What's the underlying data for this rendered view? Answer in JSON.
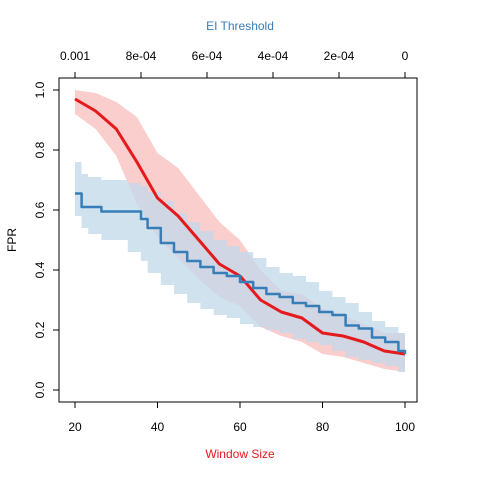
{
  "colors": {
    "red_line": "#e41a1c",
    "red_band": "#f9b3b3",
    "blue_line": "#377eb8",
    "blue_band": "#c2d8ea",
    "axis": "#000000"
  },
  "chart_data": {
    "type": "line",
    "title": "",
    "xlabel": "Window Size",
    "ylabel": "FPR",
    "top_xlabel": "EI Threshold",
    "xlim": [
      20,
      100
    ],
    "ylim": [
      0,
      1
    ],
    "xticks": [
      "20",
      "40",
      "60",
      "80",
      "100"
    ],
    "yticks": [
      "0.0",
      "0.2",
      "0.4",
      "0.6",
      "0.8",
      "1.0"
    ],
    "top_ticks": [
      "0.001",
      "8e-04",
      "6e-04",
      "4e-04",
      "2e-04",
      "0"
    ],
    "grid": false,
    "legend": "none",
    "series": [
      {
        "axis": "bottom",
        "color_key": "red",
        "x": [
          20,
          25,
          30,
          35,
          40,
          45,
          50,
          55,
          60,
          65,
          70,
          75,
          80,
          85,
          90,
          95,
          100
        ],
        "values": [
          0.97,
          0.93,
          0.87,
          0.76,
          0.64,
          0.58,
          0.5,
          0.42,
          0.38,
          0.3,
          0.26,
          0.24,
          0.19,
          0.18,
          0.16,
          0.13,
          0.12
        ],
        "lower": [
          0.92,
          0.87,
          0.78,
          0.62,
          0.51,
          0.44,
          0.37,
          0.31,
          0.28,
          0.21,
          0.18,
          0.16,
          0.12,
          0.11,
          0.09,
          0.07,
          0.06
        ],
        "upper": [
          1.0,
          0.99,
          0.96,
          0.91,
          0.79,
          0.74,
          0.65,
          0.56,
          0.5,
          0.4,
          0.33,
          0.32,
          0.27,
          0.25,
          0.22,
          0.19,
          0.19
        ]
      },
      {
        "axis": "top",
        "color_key": "blue",
        "x": [
          0.001,
          0.00098,
          0.00096,
          0.00092,
          0.00084,
          0.0008,
          0.00078,
          0.00074,
          0.0007,
          0.00066,
          0.00062,
          0.00058,
          0.00054,
          0.0005,
          0.00046,
          0.00042,
          0.00038,
          0.00034,
          0.0003,
          0.00026,
          0.00022,
          0.00018,
          0.00014,
          0.0001,
          6e-05,
          2e-05,
          0.0
        ],
        "values": [
          0.655,
          0.61,
          0.61,
          0.595,
          0.595,
          0.57,
          0.54,
          0.49,
          0.46,
          0.43,
          0.41,
          0.39,
          0.38,
          0.36,
          0.34,
          0.32,
          0.31,
          0.29,
          0.28,
          0.26,
          0.25,
          0.215,
          0.205,
          0.175,
          0.16,
          0.13,
          0.12
        ],
        "lower": [
          0.58,
          0.54,
          0.52,
          0.5,
          0.46,
          0.43,
          0.39,
          0.35,
          0.32,
          0.29,
          0.27,
          0.25,
          0.24,
          0.22,
          0.21,
          0.2,
          0.19,
          0.17,
          0.16,
          0.15,
          0.13,
          0.11,
          0.1,
          0.09,
          0.08,
          0.06,
          0.05
        ],
        "upper": [
          0.76,
          0.72,
          0.71,
          0.7,
          0.69,
          0.68,
          0.66,
          0.63,
          0.59,
          0.56,
          0.53,
          0.5,
          0.48,
          0.46,
          0.44,
          0.41,
          0.39,
          0.38,
          0.36,
          0.33,
          0.31,
          0.29,
          0.26,
          0.23,
          0.21,
          0.19,
          0.19
        ]
      }
    ]
  }
}
